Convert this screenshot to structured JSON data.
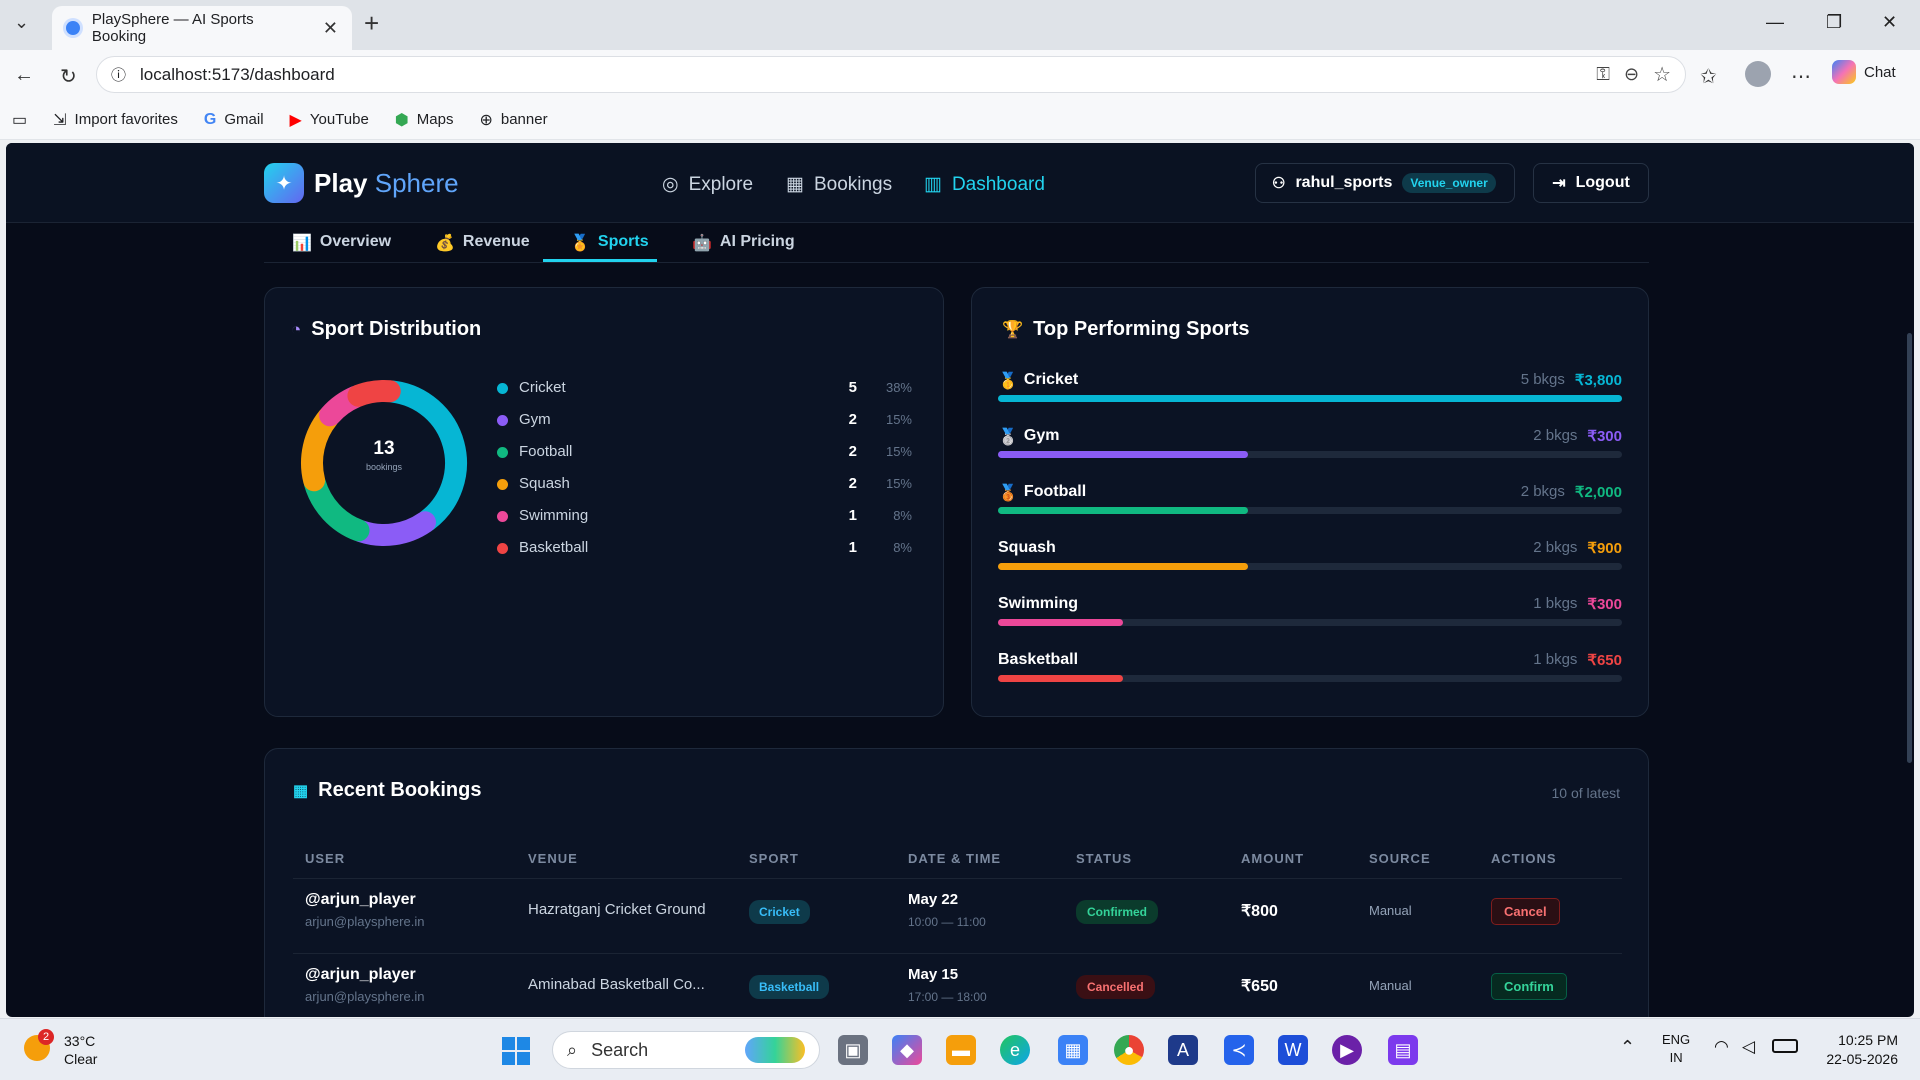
{
  "browser": {
    "tab_title": "PlaySphere — AI Sports Booking",
    "url": "localhost:5173/dashboard",
    "chat_label": "Chat",
    "bookmarks": [
      "Import favorites",
      "Gmail",
      "YouTube",
      "Maps",
      "banner"
    ]
  },
  "app": {
    "brand_part1": "Play",
    "brand_part2": "Sphere",
    "nav": [
      "Explore",
      "Bookings",
      "Dashboard"
    ],
    "username": "rahul_sports",
    "role": "Venue_owner",
    "logout": "Logout",
    "subtabs": [
      "Overview",
      "Revenue",
      "Sports",
      "AI Pricing"
    ],
    "subtab_icons": [
      "📊",
      "💰",
      "🏅",
      "🤖"
    ]
  },
  "distribution": {
    "title": "Sport Distribution",
    "total": "13",
    "total_label": "bookings",
    "items": [
      {
        "name": "Cricket",
        "count": "5",
        "pct": "38%",
        "color": "#06b6d4"
      },
      {
        "name": "Gym",
        "count": "2",
        "pct": "15%",
        "color": "#8b5cf6"
      },
      {
        "name": "Football",
        "count": "2",
        "pct": "15%",
        "color": "#10b981"
      },
      {
        "name": "Squash",
        "count": "2",
        "pct": "15%",
        "color": "#f59e0b"
      },
      {
        "name": "Swimming",
        "count": "1",
        "pct": "8%",
        "color": "#ec4899"
      },
      {
        "name": "Basketball",
        "count": "1",
        "pct": "8%",
        "color": "#ef4444"
      }
    ]
  },
  "chart_data": {
    "type": "pie",
    "categories": [
      "Cricket",
      "Gym",
      "Football",
      "Squash",
      "Swimming",
      "Basketball"
    ],
    "values": [
      5,
      2,
      2,
      2,
      1,
      1
    ]
  },
  "top_sports": {
    "title": "Top Performing Sports",
    "items": [
      {
        "medal": "🥇",
        "name": "Cricket",
        "bkgs": "5 bkgs",
        "amount": "₹3,800",
        "color": "#06b6d4",
        "fraction": 1.0
      },
      {
        "medal": "🥈",
        "name": "Gym",
        "bkgs": "2 bkgs",
        "amount": "₹300",
        "color": "#8b5cf6",
        "fraction": 0.4
      },
      {
        "medal": "🥉",
        "name": "Football",
        "bkgs": "2 bkgs",
        "amount": "₹2,000",
        "color": "#10b981",
        "fraction": 0.4
      },
      {
        "medal": "",
        "name": "Squash",
        "bkgs": "2 bkgs",
        "amount": "₹900",
        "color": "#f59e0b",
        "fraction": 0.4
      },
      {
        "medal": "",
        "name": "Swimming",
        "bkgs": "1 bkgs",
        "amount": "₹300",
        "color": "#ec4899",
        "fraction": 0.2
      },
      {
        "medal": "",
        "name": "Basketball",
        "bkgs": "1 bkgs",
        "amount": "₹650",
        "color": "#ef4444",
        "fraction": 0.2
      }
    ]
  },
  "recent": {
    "title": "Recent Bookings",
    "count_label": "10 of latest",
    "headers": [
      "USER",
      "VENUE",
      "SPORT",
      "DATE & TIME",
      "STATUS",
      "AMOUNT",
      "SOURCE",
      "ACTIONS"
    ],
    "rows": [
      {
        "user": "@arjun_player",
        "email": "arjun@playsphere.in",
        "venue": "Hazratganj Cricket Ground",
        "sport": "Cricket",
        "date": "May 22",
        "time": "10:00 — 11:00",
        "status": "Confirmed",
        "amount": "₹800",
        "source": "Manual",
        "action": "Cancel"
      },
      {
        "user": "@arjun_player",
        "email": "arjun@playsphere.in",
        "venue": "Aminabad Basketball Co...",
        "sport": "Basketball",
        "date": "May 15",
        "time": "17:00 — 18:00",
        "status": "Cancelled",
        "amount": "₹650",
        "source": "Manual",
        "action": "Confirm"
      }
    ]
  },
  "taskbar": {
    "weather_temp": "33°C",
    "weather_desc": "Clear",
    "weather_badge": "2",
    "search": "Search",
    "lang1": "ENG",
    "lang2": "IN",
    "time": "10:25 PM",
    "date": "22-05-2026"
  }
}
